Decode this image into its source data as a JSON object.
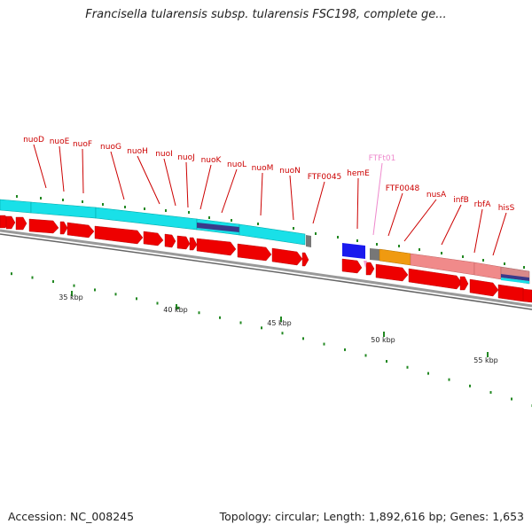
{
  "title": "Francisella tularensis subsp. tularensis FSC198, complete ge...",
  "accession": "Accession: NC_008245",
  "stats": "Topology: circular; Length: 1,892,616 bp; Genes: 1,653",
  "colors": {
    "gene_label": "#cc0000",
    "trna_label": "#ee88cc",
    "cds_arrow": "#ee0000",
    "tick": "#228822",
    "backbone": "#888888"
  },
  "gene_labels": [
    {
      "text": "nuoD",
      "kind": "gene"
    },
    {
      "text": "nuoE",
      "kind": "gene"
    },
    {
      "text": "nuoF",
      "kind": "gene"
    },
    {
      "text": "nuoG",
      "kind": "gene"
    },
    {
      "text": "nuoH",
      "kind": "gene"
    },
    {
      "text": "nuoI",
      "kind": "gene"
    },
    {
      "text": "nuoJ",
      "kind": "gene"
    },
    {
      "text": "nuoK",
      "kind": "gene"
    },
    {
      "text": "nuoL",
      "kind": "gene"
    },
    {
      "text": "nuoM",
      "kind": "gene"
    },
    {
      "text": "nuoN",
      "kind": "gene"
    },
    {
      "text": "FTF0045",
      "kind": "gene"
    },
    {
      "text": "hemE",
      "kind": "gene"
    },
    {
      "text": "FTFt01",
      "kind": "trna"
    },
    {
      "text": "FTF0048",
      "kind": "gene"
    },
    {
      "text": "nusA",
      "kind": "gene"
    },
    {
      "text": "infB",
      "kind": "gene"
    },
    {
      "text": "rbfA",
      "kind": "gene"
    },
    {
      "text": "hisS",
      "kind": "gene"
    }
  ],
  "scale_labels": [
    "35 kbp",
    "40 kbp",
    "45 kbp",
    "50 kbp",
    "55 kbp"
  ]
}
